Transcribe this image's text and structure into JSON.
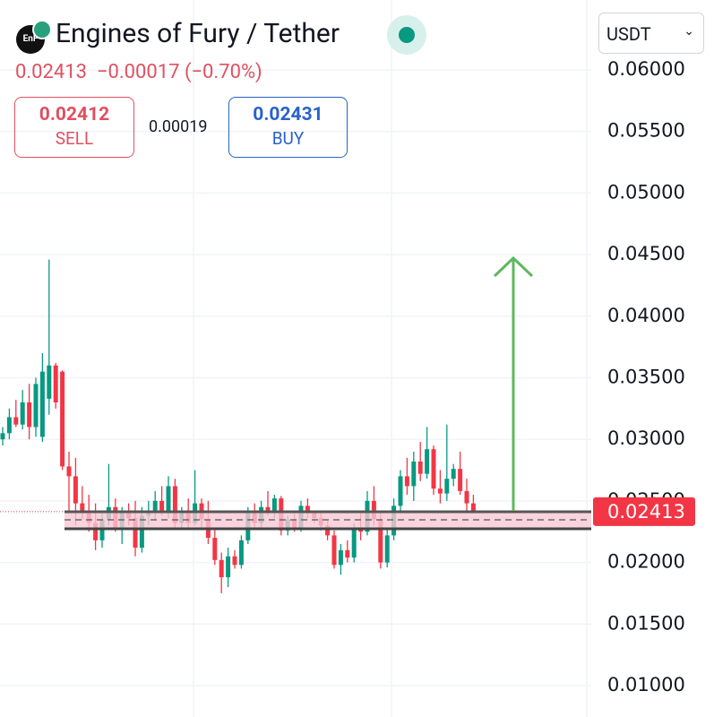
{
  "header": {
    "logo_text": "EnF",
    "title": "Engines of Fury / Tether",
    "change": "−0.00017 (−0.70%)",
    "sell_price": "0.02412",
    "sell_label": "SELL",
    "spread": "0.00019",
    "buy_price": "0.02431",
    "buy_label": "BUY",
    "currency": "USDT"
  },
  "chart_data": {
    "type": "candlestick",
    "last": 0.02413,
    "up_color": "#089981",
    "down_color": "#f23645",
    "ylim": [
      0.00745,
      0.06568
    ],
    "yticks": [
      {
        "value": 0.06,
        "label": "0.06000"
      },
      {
        "value": 0.055,
        "label": "0.05500"
      },
      {
        "value": 0.05,
        "label": "0.05000"
      },
      {
        "value": 0.045,
        "label": "0.04500"
      },
      {
        "value": 0.04,
        "label": "0.04000"
      },
      {
        "value": 0.035,
        "label": "0.03500"
      },
      {
        "value": 0.03,
        "label": "0.03000"
      },
      {
        "value": 0.025,
        "label": "0.02500"
      },
      {
        "value": 0.02,
        "label": "0.02000"
      },
      {
        "value": 0.015,
        "label": "0.01500"
      },
      {
        "value": 0.01,
        "label": "0.01000"
      }
    ],
    "grid": true,
    "ohlc": [
      [
        0.03,
        0.031,
        0.0295,
        0.0305
      ],
      [
        0.0305,
        0.0325,
        0.03,
        0.0318
      ],
      [
        0.0318,
        0.0332,
        0.031,
        0.0312
      ],
      [
        0.0312,
        0.034,
        0.0308,
        0.033
      ],
      [
        0.033,
        0.0345,
        0.03,
        0.031
      ],
      [
        0.031,
        0.035,
        0.0302,
        0.0345
      ],
      [
        0.0302,
        0.037,
        0.0298,
        0.0355
      ],
      [
        0.0333,
        0.0446,
        0.032,
        0.036
      ],
      [
        0.036,
        0.0362,
        0.0325,
        0.033
      ],
      [
        0.0355,
        0.0356,
        0.0275,
        0.0278
      ],
      [
        0.0278,
        0.029,
        0.024,
        0.027
      ],
      [
        0.027,
        0.0285,
        0.023,
        0.0248
      ],
      [
        0.0248,
        0.0262,
        0.0235,
        0.024
      ],
      [
        0.024,
        0.0255,
        0.0225,
        0.0232
      ],
      [
        0.0232,
        0.0248,
        0.021,
        0.0218
      ],
      [
        0.0218,
        0.024,
        0.0212,
        0.0235
      ],
      [
        0.0235,
        0.028,
        0.023,
        0.0245
      ],
      [
        0.0245,
        0.0252,
        0.0225,
        0.0228
      ],
      [
        0.0228,
        0.0245,
        0.0215,
        0.024
      ],
      [
        0.024,
        0.0248,
        0.023,
        0.0236
      ],
      [
        0.0236,
        0.025,
        0.0205,
        0.0212
      ],
      [
        0.0212,
        0.0245,
        0.0208,
        0.0238
      ],
      [
        0.0238,
        0.025,
        0.023,
        0.0242
      ],
      [
        0.0242,
        0.0258,
        0.0235,
        0.025
      ],
      [
        0.025,
        0.0262,
        0.0238,
        0.024
      ],
      [
        0.024,
        0.027,
        0.0236,
        0.0262
      ],
      [
        0.0262,
        0.0268,
        0.0228,
        0.0232
      ],
      [
        0.0232,
        0.0245,
        0.0228,
        0.024
      ],
      [
        0.024,
        0.0252,
        0.0228,
        0.0232
      ],
      [
        0.0232,
        0.0275,
        0.023,
        0.0248
      ],
      [
        0.0248,
        0.0252,
        0.0228,
        0.0235
      ],
      [
        0.0235,
        0.025,
        0.0215,
        0.022
      ],
      [
        0.022,
        0.0228,
        0.0198,
        0.0202
      ],
      [
        0.0202,
        0.0208,
        0.0175,
        0.0188
      ],
      [
        0.0188,
        0.0212,
        0.018,
        0.0205
      ],
      [
        0.0205,
        0.021,
        0.0195,
        0.0198
      ],
      [
        0.0198,
        0.0222,
        0.0195,
        0.0218
      ],
      [
        0.0218,
        0.0245,
        0.0215,
        0.024
      ],
      [
        0.024,
        0.0248,
        0.0228,
        0.0232
      ],
      [
        0.0232,
        0.025,
        0.0228,
        0.0245
      ],
      [
        0.0245,
        0.0258,
        0.0238,
        0.024
      ],
      [
        0.024,
        0.0255,
        0.0236,
        0.0252
      ],
      [
        0.0252,
        0.0254,
        0.0222,
        0.0226
      ],
      [
        0.0226,
        0.0238,
        0.0222,
        0.0235
      ],
      [
        0.0235,
        0.024,
        0.0225,
        0.0228
      ],
      [
        0.0228,
        0.025,
        0.0225,
        0.0246
      ],
      [
        0.0246,
        0.0252,
        0.0236,
        0.024
      ],
      [
        0.024,
        0.0242,
        0.0232,
        0.0236
      ],
      [
        0.0236,
        0.024,
        0.0226,
        0.023
      ],
      [
        0.023,
        0.0235,
        0.0218,
        0.0222
      ],
      [
        0.0222,
        0.0226,
        0.0195,
        0.0198
      ],
      [
        0.0198,
        0.0215,
        0.019,
        0.021
      ],
      [
        0.021,
        0.0218,
        0.02,
        0.0204
      ],
      [
        0.0204,
        0.0232,
        0.02,
        0.0228
      ],
      [
        0.0228,
        0.0242,
        0.0218,
        0.0225
      ],
      [
        0.0225,
        0.0258,
        0.0222,
        0.025
      ],
      [
        0.025,
        0.0262,
        0.023,
        0.0235
      ],
      [
        0.0235,
        0.024,
        0.0195,
        0.02
      ],
      [
        0.02,
        0.0228,
        0.0196,
        0.0222
      ],
      [
        0.0222,
        0.0252,
        0.0218,
        0.0246
      ],
      [
        0.0246,
        0.0275,
        0.024,
        0.027
      ],
      [
        0.027,
        0.0285,
        0.0255,
        0.0262
      ],
      [
        0.0262,
        0.029,
        0.025,
        0.0282
      ],
      [
        0.0282,
        0.0298,
        0.0266,
        0.0272
      ],
      [
        0.0272,
        0.031,
        0.0268,
        0.0292
      ],
      [
        0.0292,
        0.0295,
        0.0255,
        0.026
      ],
      [
        0.026,
        0.0275,
        0.0248,
        0.0256
      ],
      [
        0.0256,
        0.0312,
        0.025,
        0.0268
      ],
      [
        0.0268,
        0.028,
        0.0262,
        0.0276
      ],
      [
        0.0276,
        0.029,
        0.0255,
        0.0258
      ],
      [
        0.0258,
        0.0268,
        0.0242,
        0.0248
      ],
      [
        0.0248,
        0.0255,
        0.024,
        0.0241
      ]
    ]
  }
}
